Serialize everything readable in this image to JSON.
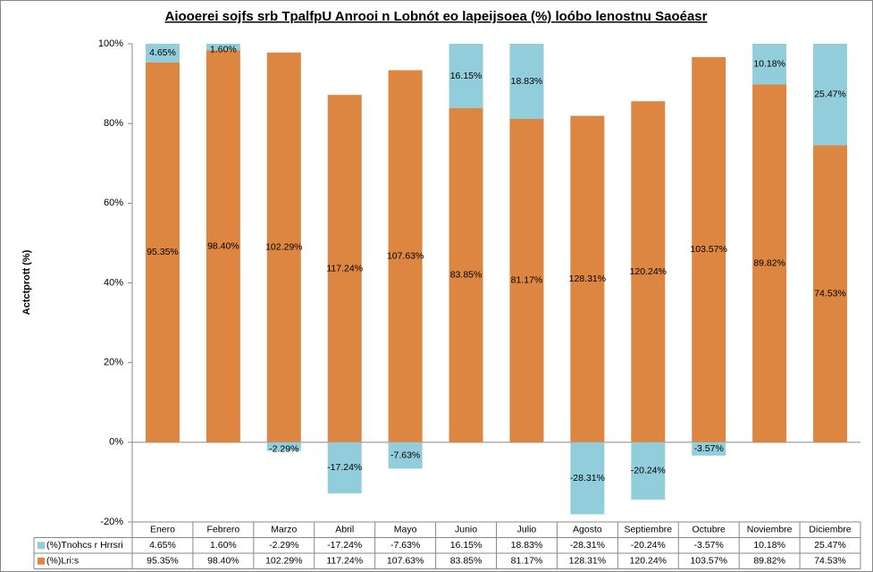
{
  "chart_data": {
    "type": "bar",
    "stacking": "percent",
    "title": "Aiooerei sojfs srb TpalfpU Anrooi n Lobnót eo lapeijsoea (%) loóbo lenostnu Saoéasr",
    "y_label": "Actctprott (%)",
    "categories": [
      "Enero",
      "Febrero",
      "Marzo",
      "Abril",
      "Mayo",
      "Junio",
      "Julio",
      "Agosto",
      "Septiembre",
      "Octubre",
      "Noviembre",
      "Diciembre"
    ],
    "series": [
      {
        "name": "(%)Tnohcs r Hrrsri",
        "color": "#92cddc",
        "values": [
          4.65,
          1.6,
          -2.29,
          -17.24,
          -7.63,
          16.15,
          18.83,
          -28.31,
          -20.24,
          -3.57,
          10.18,
          25.47
        ],
        "value_labels": [
          "4.65%",
          "1.60%",
          "-2.29%",
          "-17.24%",
          "-7.63%",
          "16.15%",
          "18.83%",
          "-28.31%",
          "-20.24%",
          "-3.57%",
          "10.18%",
          "25.47%"
        ]
      },
      {
        "name": "(%)Lri:s",
        "color": "#dd8642",
        "values": [
          95.35,
          98.4,
          102.29,
          117.24,
          107.63,
          83.85,
          81.17,
          128.31,
          120.24,
          103.57,
          89.82,
          74.53
        ],
        "value_labels": [
          "95.35%",
          "98.40%",
          "102.29%",
          "117.24%",
          "107.63%",
          "83.85%",
          "81.17%",
          "128.31%",
          "120.24%",
          "103.57%",
          "89.82%",
          "74.53%"
        ]
      }
    ],
    "ylim": [
      -20,
      100
    ],
    "yticks": [
      {
        "value": -20,
        "label": "-20%"
      },
      {
        "value": 0,
        "label": "0%"
      },
      {
        "value": 20,
        "label": "20%"
      },
      {
        "value": 40,
        "label": "40%"
      },
      {
        "value": 60,
        "label": "60%"
      },
      {
        "value": 80,
        "label": "80%"
      },
      {
        "value": 100,
        "label": "100%"
      }
    ],
    "grid": false,
    "data_table": true
  }
}
